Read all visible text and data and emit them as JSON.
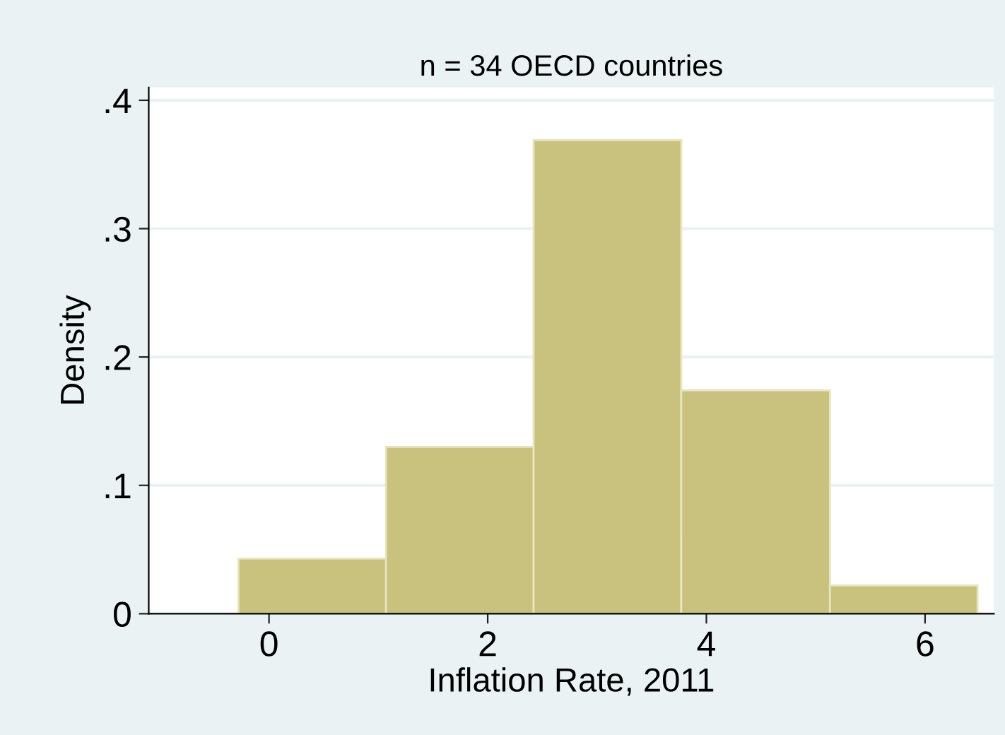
{
  "chart_data": {
    "type": "histogram",
    "title": "n = 34 OECD countries",
    "xlabel": "Inflation Rate, 2011",
    "ylabel": "Density",
    "bins": [
      -0.28,
      1.07,
      2.42,
      3.77,
      5.13,
      6.48
    ],
    "values": [
      0.043,
      0.13,
      0.369,
      0.174,
      0.022
    ],
    "color": "#c9c27e",
    "xlim": [
      -1.1,
      6.63
    ],
    "xticks": [
      0,
      2,
      4,
      6
    ],
    "ylim": [
      0,
      0.41
    ],
    "yticks": [
      0,
      {
        "value": 0.1,
        "label": ".1"
      },
      {
        "value": 0.2,
        "label": ".2"
      },
      {
        "value": 0.3,
        "label": ".3"
      },
      {
        "value": 0.4,
        "label": ".4"
      }
    ],
    "grid": "y"
  }
}
